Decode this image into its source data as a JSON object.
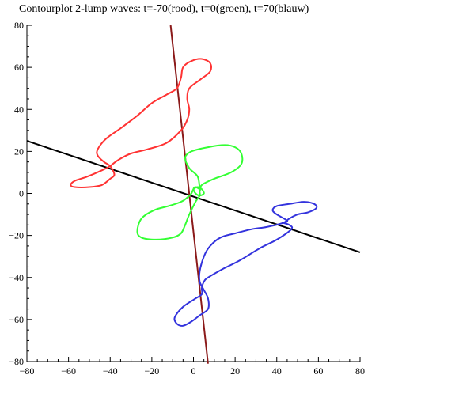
{
  "chart_data": {
    "type": "line",
    "title": "Contourplot 2-lump waves: t=-70(rood), t=0(groen), t=70(blauw)",
    "xlabel": "",
    "ylabel": "",
    "xlim": [
      -80,
      80
    ],
    "ylim": [
      -80,
      80
    ],
    "grid": false,
    "x_ticks": [
      {
        "value": -80,
        "label": "−80"
      },
      {
        "value": -60,
        "label": "−60"
      },
      {
        "value": -40,
        "label": "−40"
      },
      {
        "value": -20,
        "label": "−20"
      },
      {
        "value": 0,
        "label": "0"
      },
      {
        "value": 20,
        "label": "20"
      },
      {
        "value": 40,
        "label": "40"
      },
      {
        "value": 60,
        "label": "60"
      },
      {
        "value": 80,
        "label": "80"
      }
    ],
    "y_ticks": [
      {
        "value": 80,
        "label": "80"
      },
      {
        "value": 60,
        "label": "60"
      },
      {
        "value": 40,
        "label": "40"
      },
      {
        "value": 20,
        "label": "20"
      },
      {
        "value": 0,
        "label": "0"
      },
      {
        "value": -20,
        "label": "−20"
      },
      {
        "value": -40,
        "label": "−40"
      },
      {
        "value": -60,
        "label": "−60"
      },
      {
        "value": -80,
        "label": "−80"
      }
    ],
    "series": [
      {
        "color": "#000000",
        "points": [
          [
            -80,
            25
          ],
          [
            80,
            -28
          ]
        ]
      },
      {
        "color": "#8b1a1a",
        "points": [
          [
            -11,
            80
          ],
          [
            7,
            -81
          ]
        ]
      },
      {
        "color": "#ff3333",
        "closed": true,
        "points": [
          [
            -40,
            13
          ],
          [
            -44,
            11
          ],
          [
            -51,
            8
          ],
          [
            -57,
            6
          ],
          [
            -59,
            4
          ],
          [
            -57,
            3
          ],
          [
            -50,
            3
          ],
          [
            -44,
            4
          ],
          [
            -40,
            7
          ],
          [
            -38,
            9
          ],
          [
            -40,
            13
          ],
          [
            -43,
            15
          ],
          [
            -46,
            18
          ],
          [
            -46,
            21
          ],
          [
            -42,
            26
          ],
          [
            -35,
            31
          ],
          [
            -27,
            37
          ],
          [
            -20,
            43
          ],
          [
            -13,
            47
          ],
          [
            -8,
            50
          ],
          [
            -6,
            55
          ],
          [
            -5,
            60
          ],
          [
            -1,
            63
          ],
          [
            4,
            64
          ],
          [
            8,
            62
          ],
          [
            8,
            58
          ],
          [
            3,
            54
          ],
          [
            -2,
            50
          ],
          [
            -3,
            45
          ],
          [
            -2,
            40
          ],
          [
            -3,
            35
          ],
          [
            -6,
            30
          ],
          [
            -13,
            24
          ],
          [
            -22,
            21
          ],
          [
            -30,
            19
          ],
          [
            -36,
            16
          ],
          [
            -40,
            13
          ]
        ]
      },
      {
        "color": "#33ff33",
        "closed": true,
        "points": [
          [
            3,
            2
          ],
          [
            2,
            8
          ],
          [
            -2,
            12
          ],
          [
            -4,
            17
          ],
          [
            -1,
            20
          ],
          [
            7,
            22
          ],
          [
            15,
            23
          ],
          [
            20,
            22
          ],
          [
            23,
            19
          ],
          [
            23,
            14
          ],
          [
            18,
            10
          ],
          [
            10,
            7
          ],
          [
            4,
            4
          ],
          [
            3,
            1
          ],
          [
            3,
            -1
          ],
          [
            1,
            -4
          ],
          [
            -2,
            -10
          ],
          [
            -4,
            -15
          ],
          [
            -6,
            -19
          ],
          [
            -10,
            -21
          ],
          [
            -18,
            -22
          ],
          [
            -25,
            -21
          ],
          [
            -27,
            -18
          ],
          [
            -25,
            -12
          ],
          [
            -19,
            -8
          ],
          [
            -12,
            -6
          ],
          [
            -6,
            -4
          ],
          [
            -3,
            -2
          ],
          [
            -1,
            0
          ],
          [
            0,
            2
          ],
          [
            2,
            3
          ],
          [
            4,
            2
          ],
          [
            5,
            0
          ],
          [
            3,
            -1
          ],
          [
            1,
            0
          ],
          [
            0,
            2
          ],
          [
            1,
            3
          ],
          [
            3,
            2
          ]
        ]
      },
      {
        "color": "#3333dd",
        "closed": true,
        "points": [
          [
            43,
            -14
          ],
          [
            45,
            -13
          ],
          [
            40,
            -10
          ],
          [
            38,
            -8
          ],
          [
            40,
            -6
          ],
          [
            46,
            -5
          ],
          [
            53,
            -4
          ],
          [
            58,
            -5
          ],
          [
            59,
            -7
          ],
          [
            55,
            -9
          ],
          [
            50,
            -10
          ],
          [
            46,
            -12
          ],
          [
            43,
            -14
          ],
          [
            35,
            -16
          ],
          [
            28,
            -17
          ],
          [
            20,
            -19
          ],
          [
            13,
            -21
          ],
          [
            8,
            -25
          ],
          [
            5,
            -30
          ],
          [
            3,
            -37
          ],
          [
            3,
            -42
          ],
          [
            5,
            -46
          ],
          [
            7,
            -50
          ],
          [
            7,
            -55
          ],
          [
            3,
            -58
          ],
          [
            -1,
            -61
          ],
          [
            -5,
            -63
          ],
          [
            -8,
            -62
          ],
          [
            -9,
            -59
          ],
          [
            -5,
            -54
          ],
          [
            1,
            -50
          ],
          [
            4,
            -48
          ],
          [
            4,
            -45
          ],
          [
            5,
            -42
          ],
          [
            7,
            -40
          ],
          [
            14,
            -36
          ],
          [
            22,
            -32
          ],
          [
            32,
            -26
          ],
          [
            40,
            -22
          ],
          [
            47,
            -17
          ],
          [
            46,
            -15
          ],
          [
            43,
            -14
          ]
        ]
      }
    ]
  }
}
